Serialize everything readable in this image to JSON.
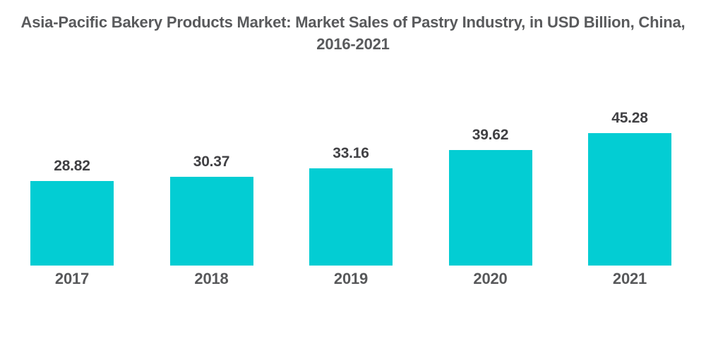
{
  "header": {
    "title_line1": "Asia-Pacific Bakery Products Market: Market Sales of Pastry Industry, in USD Billion, China,",
    "title_line2": "2016-2021"
  },
  "chart_data": {
    "type": "bar",
    "title": "Asia-Pacific Bakery Products Market: Market Sales of Pastry Industry, in USD Billion, China, 2016-2021",
    "categories": [
      "2017",
      "2018",
      "2019",
      "2020",
      "2021"
    ],
    "values": [
      28.82,
      30.37,
      33.16,
      39.62,
      45.28
    ],
    "value_labels": [
      "28.82",
      "30.37",
      "33.16",
      "39.62",
      "45.28"
    ],
    "xlabel": "",
    "ylabel": "",
    "ylim": [
      0,
      50
    ],
    "grid": false,
    "legend": false,
    "bar_color": "#03cdd3",
    "title_color": "#595a5c",
    "label_color": "#414144",
    "axis_label_color": "#57585a",
    "background_color": "#ffffff"
  }
}
